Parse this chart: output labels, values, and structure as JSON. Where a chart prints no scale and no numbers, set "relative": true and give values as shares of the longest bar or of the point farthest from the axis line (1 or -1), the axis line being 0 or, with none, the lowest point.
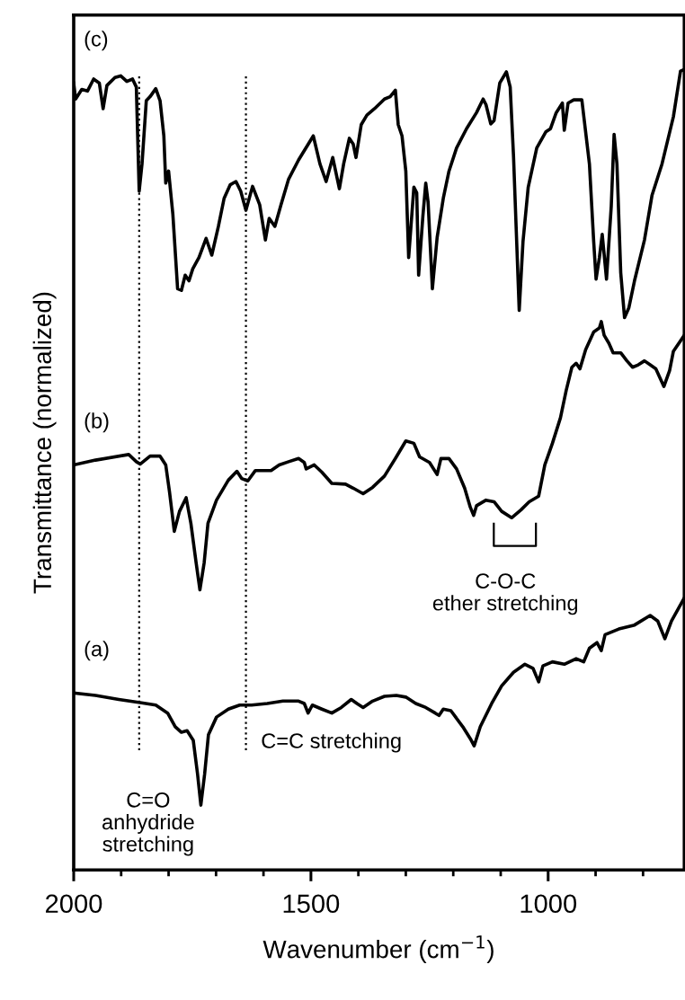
{
  "chart_data": {
    "type": "line",
    "relative": true,
    "xlabel": "Wavenumber (cm$^{−1}$)",
    "ylabel": "Transmittance (normalized)",
    "xlim": [
      2000,
      713
    ],
    "xticks": [
      2000,
      {
        "value": 1900,
        "label": null
      },
      {
        "value": 1800,
        "label": null
      },
      {
        "value": 1700,
        "label": null
      },
      {
        "value": 1600,
        "label": null
      },
      1500,
      {
        "value": 1400,
        "label": null
      },
      {
        "value": 1300,
        "label": null
      },
      {
        "value": 1200,
        "label": null
      },
      {
        "value": 1100,
        "label": null
      },
      1000,
      {
        "value": 900,
        "label": null
      },
      {
        "value": 800,
        "label": null
      }
    ],
    "tick_labels": "x",
    "grid": false,
    "legend": false,
    "line_style": "solid",
    "marker": "none",
    "series": [
      {
        "name": "(c)",
        "color": "#000000",
        "x": [
          2000,
          1996,
          1983,
          1971,
          1958,
          1946,
          1938,
          1930,
          1913,
          1901,
          1888,
          1876,
          1868,
          1862,
          1856,
          1847,
          1839,
          1827,
          1818,
          1810,
          1806,
          1800,
          1791,
          1781,
          1773,
          1765,
          1757,
          1749,
          1736,
          1721,
          1709,
          1695,
          1683,
          1670,
          1658,
          1648,
          1637,
          1623,
          1608,
          1596,
          1588,
          1576,
          1563,
          1547,
          1526,
          1495,
          1481,
          1468,
          1454,
          1440,
          1431,
          1419,
          1411,
          1405,
          1394,
          1382,
          1366,
          1345,
          1333,
          1322,
          1316,
          1308,
          1300,
          1294,
          1283,
          1277,
          1273,
          1264,
          1258,
          1253,
          1244,
          1234,
          1221,
          1209,
          1193,
          1172,
          1151,
          1137,
          1131,
          1121,
          1114,
          1102,
          1088,
          1080,
          1073,
          1061,
          1053,
          1042,
          1024,
          1005,
          995,
          983,
          970,
          966,
          958,
          946,
          929,
          921,
          913,
          904,
          899,
          892,
          886,
          877,
          867,
          861,
          855,
          847,
          839,
          830,
          818,
          797,
          781,
          760,
          736,
          721,
          713
        ],
        "values": [
          0.983,
          0.963,
          0.975,
          0.973,
          0.988,
          0.983,
          0.951,
          0.98,
          0.99,
          0.992,
          0.985,
          0.988,
          0.978,
          0.848,
          0.882,
          0.961,
          0.966,
          0.976,
          0.961,
          0.917,
          0.858,
          0.873,
          0.819,
          0.726,
          0.724,
          0.743,
          0.736,
          0.751,
          0.765,
          0.789,
          0.768,
          0.804,
          0.839,
          0.856,
          0.86,
          0.848,
          0.824,
          0.854,
          0.831,
          0.787,
          0.814,
          0.804,
          0.831,
          0.863,
          0.887,
          0.917,
          0.882,
          0.86,
          0.89,
          0.851,
          0.882,
          0.914,
          0.907,
          0.89,
          0.931,
          0.943,
          0.951,
          0.963,
          0.966,
          0.974,
          0.931,
          0.917,
          0.873,
          0.765,
          0.853,
          0.846,
          0.743,
          0.817,
          0.858,
          0.834,
          0.726,
          0.79,
          0.839,
          0.873,
          0.902,
          0.926,
          0.946,
          0.963,
          0.956,
          0.932,
          0.936,
          0.983,
          0.997,
          0.978,
          0.892,
          0.699,
          0.785,
          0.853,
          0.902,
          0.922,
          0.926,
          0.946,
          0.958,
          0.924,
          0.958,
          0.962,
          0.962,
          0.922,
          0.882,
          0.785,
          0.738,
          0.765,
          0.794,
          0.738,
          0.829,
          0.919,
          0.882,
          0.746,
          0.69,
          0.702,
          0.736,
          0.787,
          0.843,
          0.882,
          0.941,
          0.998,
          1.0
        ]
      },
      {
        "name": "(b)",
        "color": "#000000",
        "x": [
          2000,
          1954,
          1884,
          1868,
          1860,
          1839,
          1818,
          1806,
          1798,
          1788,
          1777,
          1763,
          1753,
          1742,
          1734,
          1725,
          1717,
          1699,
          1674,
          1656,
          1646,
          1633,
          1617,
          1600,
          1584,
          1567,
          1547,
          1526,
          1514,
          1510,
          1493,
          1477,
          1456,
          1427,
          1411,
          1390,
          1370,
          1345,
          1320,
          1300,
          1283,
          1271,
          1250,
          1234,
          1226,
          1209,
          1193,
          1176,
          1164,
          1157,
          1151,
          1131,
          1114,
          1098,
          1077,
          1057,
          1040,
          1020,
          1007,
          991,
          974,
          962,
          950,
          941,
          933,
          921,
          904,
          892,
          888,
          882,
          872,
          863,
          847,
          834,
          822,
          810,
          797,
          785,
          773,
          756,
          744,
          736,
          713
        ],
        "values": [
          0.506,
          0.512,
          0.519,
          0.51,
          0.507,
          0.517,
          0.517,
          0.506,
          0.472,
          0.423,
          0.448,
          0.465,
          0.433,
          0.384,
          0.35,
          0.384,
          0.433,
          0.462,
          0.487,
          0.498,
          0.489,
          0.486,
          0.499,
          0.499,
          0.499,
          0.506,
          0.51,
          0.514,
          0.509,
          0.501,
          0.506,
          0.497,
          0.483,
          0.482,
          0.477,
          0.47,
          0.478,
          0.492,
          0.516,
          0.536,
          0.533,
          0.516,
          0.509,
          0.494,
          0.514,
          0.514,
          0.501,
          0.477,
          0.453,
          0.443,
          0.455,
          0.462,
          0.46,
          0.448,
          0.44,
          0.45,
          0.46,
          0.467,
          0.506,
          0.533,
          0.565,
          0.599,
          0.628,
          0.633,
          0.626,
          0.65,
          0.672,
          0.677,
          0.685,
          0.668,
          0.658,
          0.646,
          0.646,
          0.636,
          0.628,
          0.631,
          0.636,
          0.631,
          0.626,
          0.604,
          0.624,
          0.648,
          0.668
        ]
      },
      {
        "name": "(a)",
        "color": "#000000",
        "x": [
          2000,
          1954,
          1905,
          1860,
          1827,
          1802,
          1786,
          1773,
          1761,
          1748,
          1739,
          1732,
          1724,
          1716,
          1699,
          1674,
          1650,
          1625,
          1592,
          1559,
          1526,
          1514,
          1506,
          1497,
          1477,
          1456,
          1436,
          1415,
          1403,
          1390,
          1370,
          1345,
          1320,
          1300,
          1279,
          1258,
          1238,
          1230,
          1221,
          1205,
          1180,
          1164,
          1156,
          1143,
          1119,
          1098,
          1073,
          1049,
          1032,
          1020,
          1011,
          991,
          966,
          941,
          925,
          913,
          897,
          888,
          880,
          851,
          818,
          785,
          769,
          754,
          740,
          713
        ],
        "values": [
          0.221,
          0.218,
          0.213,
          0.209,
          0.206,
          0.196,
          0.179,
          0.172,
          0.174,
          0.162,
          0.12,
          0.081,
          0.12,
          0.169,
          0.191,
          0.201,
          0.206,
          0.206,
          0.208,
          0.211,
          0.211,
          0.208,
          0.196,
          0.206,
          0.201,
          0.196,
          0.203,
          0.213,
          0.208,
          0.203,
          0.211,
          0.217,
          0.218,
          0.216,
          0.208,
          0.203,
          0.196,
          0.193,
          0.201,
          0.199,
          0.179,
          0.164,
          0.155,
          0.179,
          0.208,
          0.23,
          0.247,
          0.257,
          0.252,
          0.235,
          0.255,
          0.26,
          0.257,
          0.264,
          0.26,
          0.277,
          0.284,
          0.274,
          0.294,
          0.301,
          0.306,
          0.318,
          0.311,
          0.289,
          0.311,
          0.34
        ]
      }
    ],
    "ref_lines": [
      {
        "axis": "x",
        "value": 1862,
        "color": "#000000",
        "line_style": "dotted"
      },
      {
        "axis": "x",
        "value": 1637,
        "color": "#000000",
        "line_style": "dotted"
      }
    ],
    "annotations": [
      "C=O\nanhydride\nstretching",
      "C=C stretching",
      "C-O-C\nether stretching"
    ]
  }
}
